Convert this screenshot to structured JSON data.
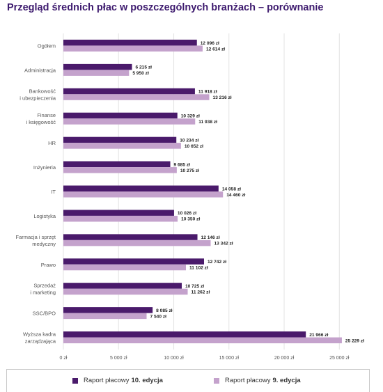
{
  "title": "Przegląd średnich płac w poszczególnych branżach – porównanie",
  "colors": {
    "title": "#3d1a6e",
    "series_10": "#4a1a6b",
    "series_9": "#c4a2cc",
    "grid": "#e3e3e3",
    "frame": "#c9c9c9"
  },
  "legend": {
    "items": [
      {
        "prefix": "Raport płacowy",
        "bold": "10. edycja",
        "color": "#4a1a6b"
      },
      {
        "prefix": "Raport płacowy",
        "bold": "9. edycja",
        "color": "#c4a2cc"
      }
    ]
  },
  "chart_data": {
    "type": "bar",
    "orientation": "horizontal",
    "title": "Przegląd średnich płac w poszczególnych branżach – porównanie",
    "categories": [
      [
        "Ogółem"
      ],
      [
        "Administracja"
      ],
      [
        "Bankowość",
        "i ubezpieczenia"
      ],
      [
        "Finanse",
        "i księgowość"
      ],
      [
        "HR"
      ],
      [
        "Inżynieria"
      ],
      [
        "IT"
      ],
      [
        "Logistyka"
      ],
      [
        "Farmacja i sprzęt",
        "medyczny"
      ],
      [
        "Prawo"
      ],
      [
        "Sprzedaż",
        "i marketing"
      ],
      [
        "SSC/BPO"
      ],
      [
        "Wyższa kadra",
        "zarządzająca"
      ]
    ],
    "series": [
      {
        "name": "Raport płacowy 10. edycja",
        "values": [
          12096,
          6215,
          11918,
          10329,
          10234,
          9685,
          14058,
          10026,
          12146,
          12742,
          10725,
          8085,
          21966
        ],
        "labels": [
          "12 096 zł",
          "6 215 zł",
          "11 918 zł",
          "10 329 zł",
          "10 234 zł",
          "9 685 zł",
          "14 058 zł",
          "10 026 zł",
          "12 146 zł",
          "12 742 zł",
          "10 725 zł",
          "8 085 zł",
          "21 966 zł"
        ]
      },
      {
        "name": "Raport płacowy 9. edycja",
        "values": [
          12614,
          5950,
          13216,
          11938,
          10652,
          10275,
          14460,
          10350,
          13342,
          11102,
          11262,
          7540,
          25229
        ],
        "labels": [
          "12 614 zł",
          "5 950 zł",
          "13 216 zł",
          "11 938 zł",
          "10 652 zł",
          "10 275 zł",
          "14 460 zł",
          "10 350 zł",
          "13 342 zł",
          "11 102 zł",
          "11 262 zł",
          "7 540 zł",
          "25 229 zł"
        ]
      }
    ],
    "xlim": [
      0,
      27000
    ],
    "xticks": [
      0,
      5000,
      10000,
      15000,
      20000,
      25000
    ],
    "xtick_labels": [
      "0 zł",
      "5 000 zł",
      "10 000 zł",
      "15 000 zł",
      "20 000 zł",
      "25 000 zł"
    ],
    "grid": true,
    "legend_position": "bottom"
  }
}
